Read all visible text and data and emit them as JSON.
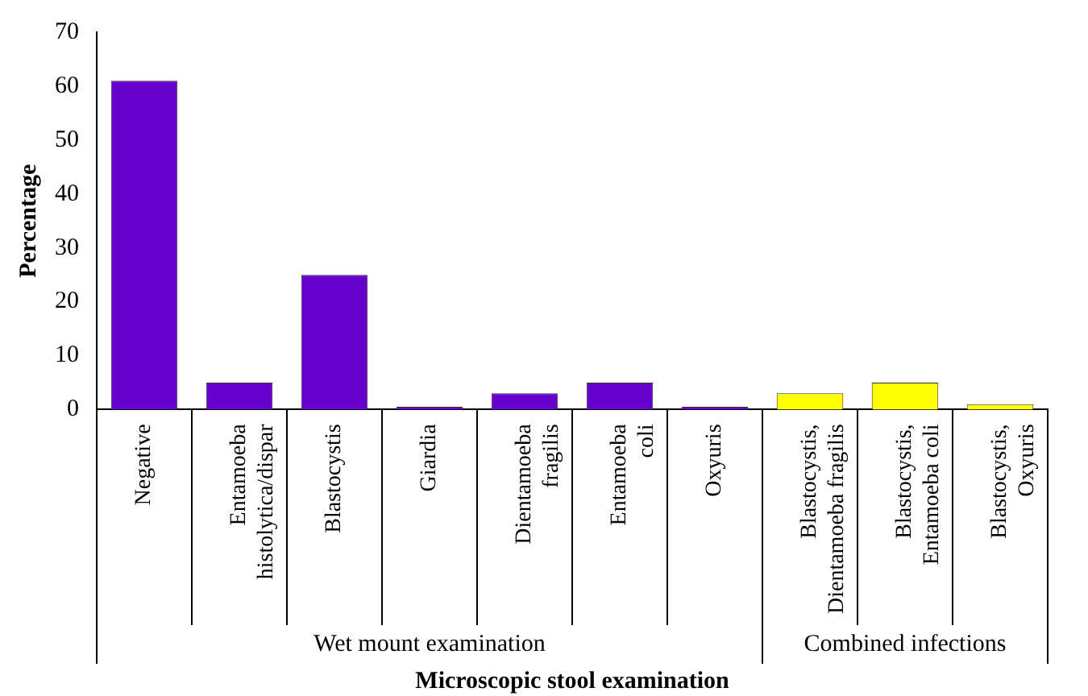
{
  "chart_data": {
    "type": "bar",
    "xlabel": "Microscopic stool examination",
    "ylabel": "Percentage",
    "categories": [
      "Negative",
      "Entamoeba histolytica/dispar",
      "Blastocystis",
      "Giardia",
      "Dientamoeba fragilis",
      "Entamoeba coli",
      "Oxyuris",
      "Blastocystis, Dientamoeba fragilis",
      "Blastocystis, Entamoeba coli",
      "Blastocystis, Oxyuris"
    ],
    "values": [
      61,
      5,
      25,
      0.5,
      3,
      5,
      0.5,
      3,
      5,
      1
    ],
    "colors": [
      "#6600cc",
      "#6600cc",
      "#6600cc",
      "#6600cc",
      "#6600cc",
      "#6600cc",
      "#6600cc",
      "#ffff00",
      "#ffff00",
      "#ffff00"
    ],
    "ylim": [
      0,
      70
    ],
    "yticks": [
      0,
      10,
      20,
      30,
      40,
      50,
      60,
      70
    ],
    "grid": false,
    "legend": false,
    "annotations": [
      "Wet mount examination",
      "Combined infections"
    ]
  }
}
